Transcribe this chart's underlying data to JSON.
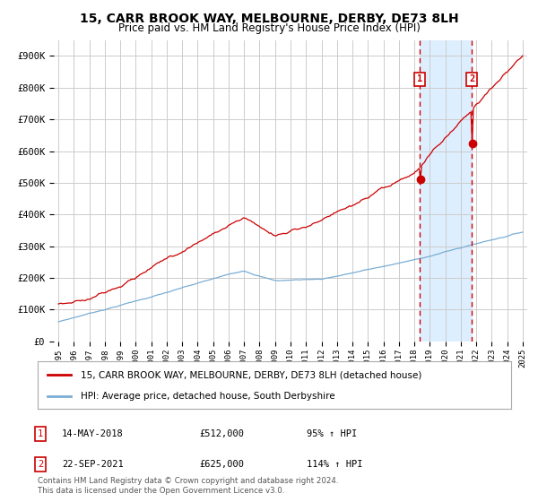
{
  "title": "15, CARR BROOK WAY, MELBOURNE, DERBY, DE73 8LH",
  "subtitle": "Price paid vs. HM Land Registry's House Price Index (HPI)",
  "title_fontsize": 10,
  "subtitle_fontsize": 8.5,
  "legend_red": "15, CARR BROOK WAY, MELBOURNE, DERBY, DE73 8LH (detached house)",
  "legend_blue": "HPI: Average price, detached house, South Derbyshire",
  "note": "Contains HM Land Registry data © Crown copyright and database right 2024.\nThis data is licensed under the Open Government Licence v3.0.",
  "purchase1_date": "14-MAY-2018",
  "purchase1_price": 512000,
  "purchase1_pct": "95%",
  "purchase2_date": "22-SEP-2021",
  "purchase2_price": 625000,
  "purchase2_pct": "114%",
  "red_color": "#cc0000",
  "blue_color": "#7aadd4",
  "shade_color": "#ddeeff",
  "grid_color": "#cccccc",
  "background_color": "#ffffff",
  "ylim": [
    0,
    950000
  ],
  "yticks": [
    0,
    100000,
    200000,
    300000,
    400000,
    500000,
    600000,
    700000,
    800000,
    900000
  ],
  "ytick_labels": [
    "£0",
    "£100K",
    "£200K",
    "£300K",
    "£400K",
    "£500K",
    "£600K",
    "£700K",
    "£800K",
    "£900K"
  ],
  "year_start": 1995,
  "year_end": 2025,
  "purchase1_year": 2018.37,
  "purchase2_year": 2021.72
}
